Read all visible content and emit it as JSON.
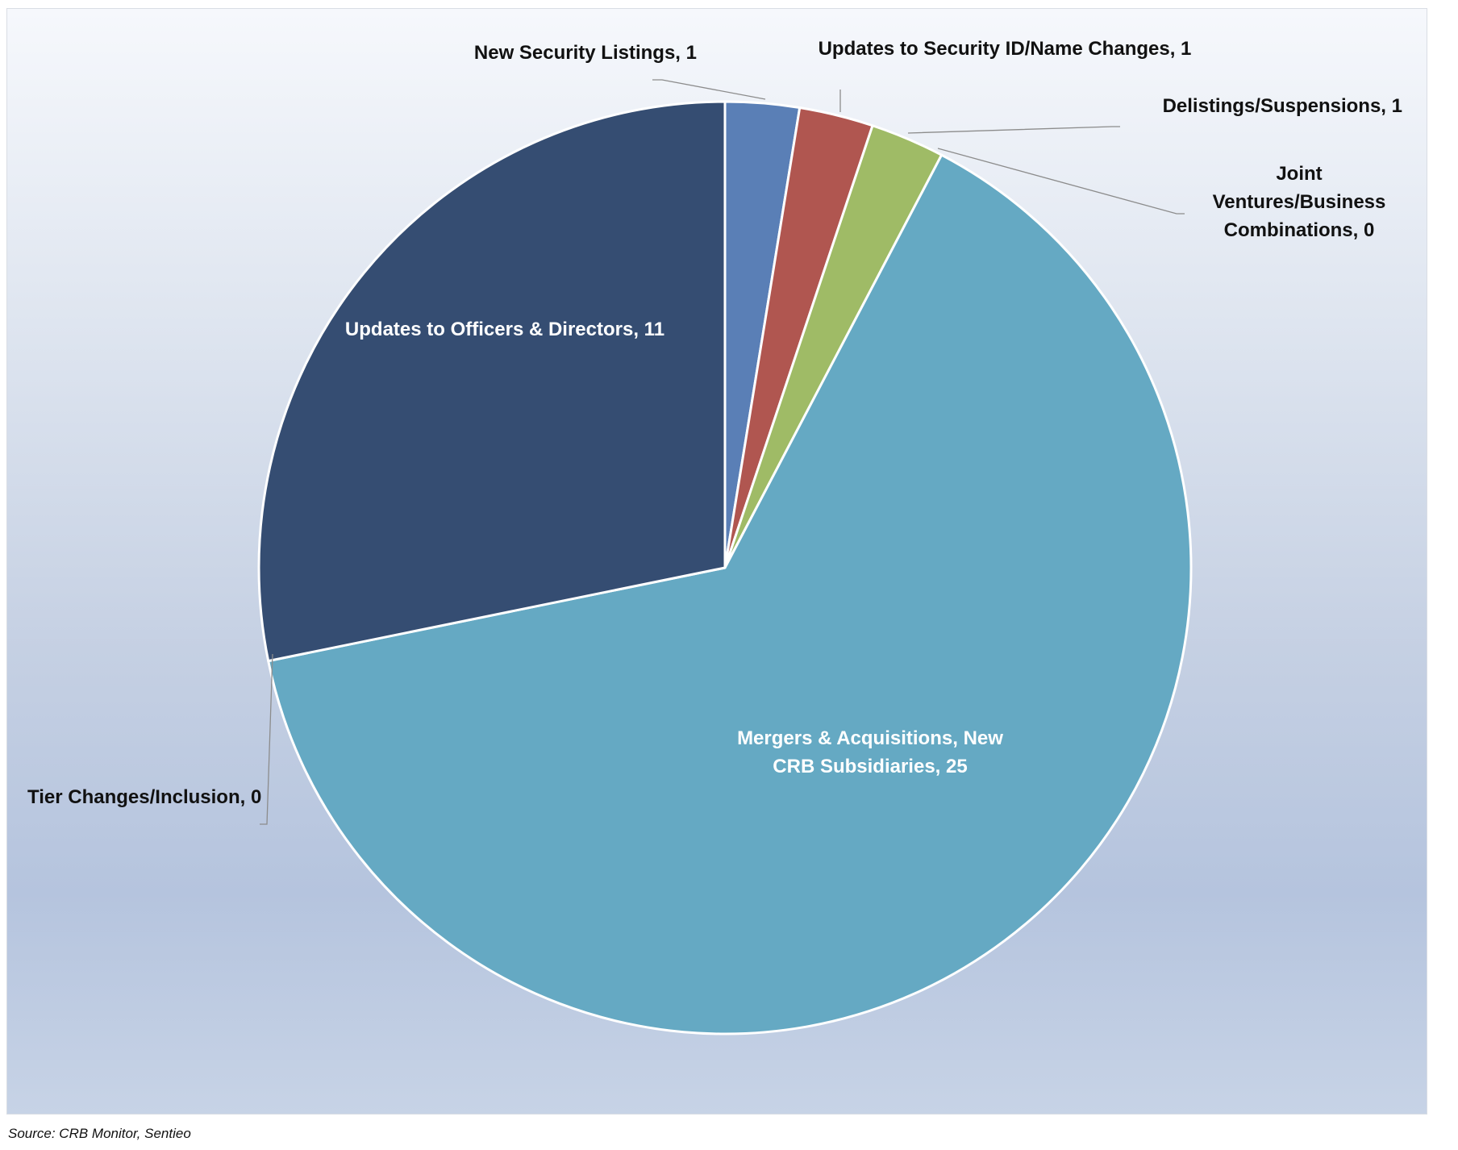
{
  "chart_data": {
    "type": "pie",
    "title": "",
    "slices": [
      {
        "label": "New Security Listings, 1",
        "name": "New Security Listings",
        "value": 1,
        "color": "#5a7fb6"
      },
      {
        "label": "Updates to Security ID/Name Changes, 1",
        "name": "Updates to Security ID/Name Changes",
        "value": 1,
        "color": "#b05650"
      },
      {
        "label": "Delistings/Suspensions, 1",
        "name": "Delistings/Suspensions",
        "value": 1,
        "color": "#9fbb66"
      },
      {
        "label": "Joint Ventures/Business Combinations, 0",
        "name": "Joint Ventures/Business Combinations",
        "value": 0,
        "color": "#7a5f9a"
      },
      {
        "label": "Mergers & Acquisitions, New CRB Subsidiaries, 25",
        "name": "Mergers & Acquisitions, New CRB Subsidiaries",
        "value": 25,
        "color": "#65a9c3"
      },
      {
        "label": "Tier Changes/Inclusion, 0",
        "name": "Tier Changes/Inclusion",
        "value": 0,
        "color": "#e08b3f"
      },
      {
        "label": "Updates to Officers & Directors, 11",
        "name": "Updates to Officers & Directors",
        "value": 11,
        "color": "#354d72"
      }
    ],
    "start_angle": "12 o'clock",
    "direction": "clockwise",
    "legend": "none",
    "data_labels": true
  },
  "source": "Source: CRB Monitor, Sentieo"
}
